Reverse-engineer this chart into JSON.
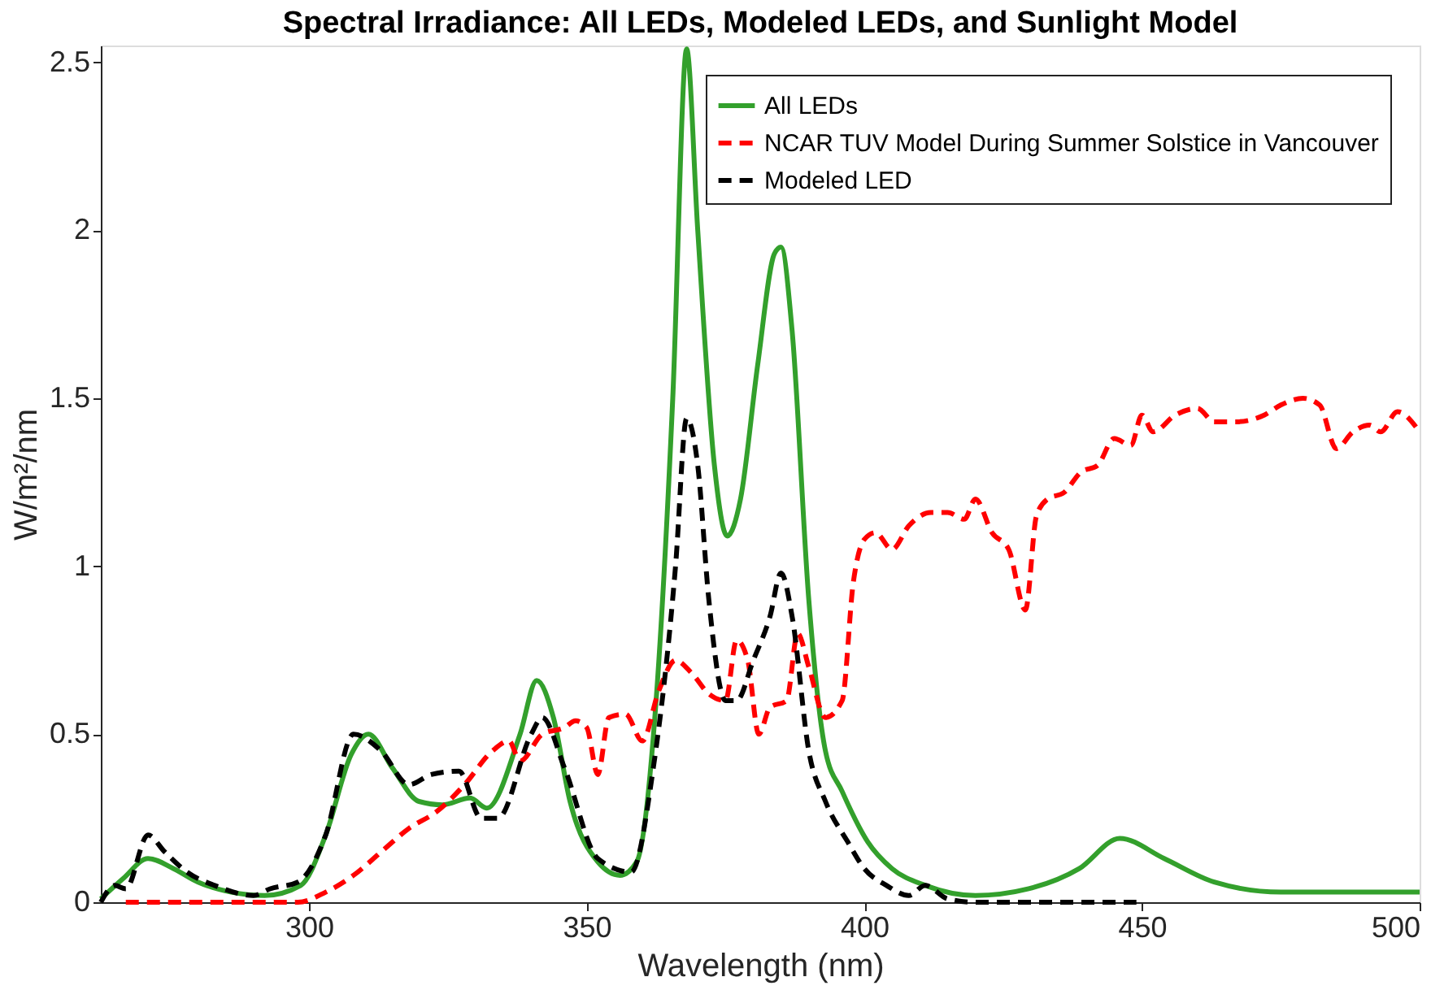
{
  "chart_data": {
    "type": "line",
    "title": "Spectral Irradiance: All LEDs, Modeled LEDs, and Sunlight Model",
    "xlabel": "Wavelength (nm)",
    "ylabel": "W/m²/nm",
    "xlim": [
      262.5,
      500
    ],
    "ylim": [
      0,
      2.55
    ],
    "xticks": [
      300,
      350,
      400,
      450,
      500
    ],
    "yticks": [
      0,
      0.5,
      1,
      1.5,
      2,
      2.5
    ],
    "grid": false,
    "legend": "top right",
    "marker": "none",
    "series": [
      {
        "name": "All LEDs",
        "color": "#33a02c",
        "line_style": "solid",
        "x": [
          262.5,
          266.5,
          271,
          275.6,
          280,
          286,
          292,
          298.5,
          303,
          307.6,
          310.7,
          315,
          319.8,
          324,
          329,
          332,
          338,
          341,
          344,
          347,
          352,
          356,
          359,
          362.5,
          365.5,
          368,
          370,
          373,
          375.3,
          377.7,
          380.8,
          383.8,
          385,
          387,
          390,
          393,
          396,
          400.6,
          405,
          411,
          420,
          429.6,
          438.7,
          446,
          454,
          463,
          475,
          500
        ],
        "values": [
          0.01,
          0.07,
          0.13,
          0.1,
          0.06,
          0.03,
          0.02,
          0.05,
          0.2,
          0.44,
          0.5,
          0.4,
          0.3,
          0.29,
          0.31,
          0.28,
          0.5,
          0.66,
          0.55,
          0.3,
          0.12,
          0.08,
          0.12,
          0.6,
          1.5,
          2.54,
          2.0,
          1.3,
          1.09,
          1.2,
          1.6,
          1.93,
          1.95,
          1.7,
          0.9,
          0.45,
          0.33,
          0.18,
          0.1,
          0.05,
          0.02,
          0.04,
          0.1,
          0.19,
          0.13,
          0.06,
          0.03,
          0.03
        ]
      },
      {
        "name": "NCAR TUV Model During Summer Solstice in Vancouver",
        "color": "#ff0000",
        "line_style": "dashed",
        "x": [
          267,
          298,
          303,
          308,
          313,
          318,
          323,
          328,
          333,
          336,
          338,
          342,
          346,
          348,
          350,
          352,
          354,
          357,
          360,
          363,
          366,
          369,
          372,
          375,
          377,
          379,
          381,
          383,
          386,
          388,
          390,
          393,
          396,
          398,
          400,
          402,
          405,
          408,
          412,
          415,
          418,
          420,
          423,
          426,
          429,
          431,
          433,
          436,
          439,
          442,
          445,
          448,
          450,
          452,
          456,
          460,
          463,
          467,
          472,
          475,
          479,
          482,
          485,
          488,
          491,
          493,
          496,
          500
        ],
        "values": [
          0,
          0,
          0.03,
          0.08,
          0.15,
          0.22,
          0.27,
          0.35,
          0.45,
          0.48,
          0.42,
          0.5,
          0.52,
          0.54,
          0.52,
          0.38,
          0.55,
          0.56,
          0.48,
          0.63,
          0.72,
          0.68,
          0.62,
          0.6,
          0.78,
          0.72,
          0.5,
          0.58,
          0.6,
          0.8,
          0.7,
          0.55,
          0.6,
          0.95,
          1.08,
          1.1,
          1.05,
          1.12,
          1.16,
          1.16,
          1.14,
          1.2,
          1.1,
          1.05,
          0.87,
          1.15,
          1.2,
          1.22,
          1.28,
          1.3,
          1.38,
          1.36,
          1.45,
          1.4,
          1.45,
          1.47,
          1.43,
          1.43,
          1.45,
          1.48,
          1.5,
          1.48,
          1.35,
          1.4,
          1.42,
          1.4,
          1.46,
          1.4
        ]
      },
      {
        "name": "Modeled LED",
        "color": "#000000",
        "line_style": "dashed",
        "x": [
          262.5,
          265,
          267,
          271,
          274,
          278,
          283,
          290,
          293,
          298,
          303,
          308,
          313,
          318,
          322,
          327,
          331,
          334,
          340,
          342,
          346,
          352,
          358,
          362,
          366,
          368,
          370,
          372,
          375,
          377,
          380,
          383,
          385,
          387,
          390,
          393,
          397,
          400,
          404,
          408,
          411,
          415,
          420,
          449
        ],
        "values": [
          0,
          0.05,
          0.04,
          0.2,
          0.15,
          0.09,
          0.05,
          0.02,
          0.04,
          0.06,
          0.2,
          0.5,
          0.45,
          0.35,
          0.38,
          0.39,
          0.25,
          0.25,
          0.5,
          0.55,
          0.4,
          0.13,
          0.09,
          0.4,
          1.0,
          1.44,
          1.3,
          0.9,
          0.6,
          0.6,
          0.72,
          0.85,
          0.98,
          0.85,
          0.45,
          0.3,
          0.18,
          0.1,
          0.05,
          0.02,
          0.05,
          0.01,
          0,
          0
        ]
      }
    ]
  }
}
